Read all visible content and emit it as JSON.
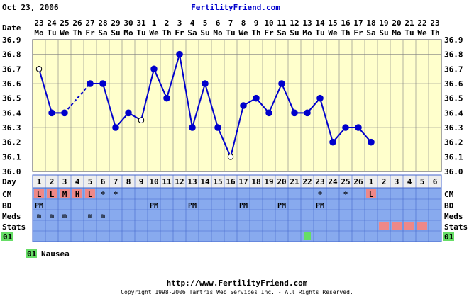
{
  "header": {
    "date": "Oct 23, 2006",
    "site": "FertilityFriend.com"
  },
  "rows": {
    "date_label": "Date",
    "day_label": "Day",
    "cm_label": "CM",
    "bd_label": "BD",
    "meds_label": "Meds",
    "stats_label": "Stats",
    "symptom_code": "01"
  },
  "legend": {
    "code": "01",
    "label": "Nausea"
  },
  "footer": {
    "url": "http://www.FertilityFriend.com",
    "copyright": "Copyright 1998-2006 Tamtris Web Services Inc. - All Rights Reserved."
  },
  "colors": {
    "plot_bg": "#ffffcc",
    "grid": "#808080",
    "line": "#0000cc",
    "point": "#0000cc",
    "row_bg": "#88aaee",
    "row_border": "#4466cc",
    "day_row_bg": "#eeeeee",
    "cm_mark": "#ee8888",
    "stats_mark": "#ee8888",
    "symptom_mark": "#66dd66",
    "site_link": "#0000cc"
  },
  "chart_data": {
    "type": "line",
    "ylim": [
      36.0,
      36.9
    ],
    "yticks": [
      "36.0",
      "36.1",
      "36.2",
      "36.3",
      "36.4",
      "36.5",
      "36.6",
      "36.7",
      "36.8",
      "36.9"
    ],
    "grid": true,
    "dates": [
      "23",
      "24",
      "25",
      "26",
      "27",
      "28",
      "29",
      "30",
      "31",
      "1",
      "2",
      "3",
      "4",
      "5",
      "6",
      "7",
      "8",
      "9",
      "10",
      "11",
      "12",
      "13",
      "14",
      "15",
      "16",
      "17",
      "18",
      "19",
      "20",
      "21",
      "22",
      "23"
    ],
    "weekdays": [
      "Mo",
      "Tu",
      "We",
      "Th",
      "Fr",
      "Sa",
      "Su",
      "Mo",
      "Tu",
      "We",
      "Th",
      "Fr",
      "Sa",
      "Su",
      "Mo",
      "Tu",
      "We",
      "Th",
      "Fr",
      "Sa",
      "Su",
      "Mo",
      "Tu",
      "We",
      "Th",
      "Fr",
      "Sa",
      "Su",
      "Mo",
      "Tu",
      "We",
      "Th"
    ],
    "cycle_days": [
      "1",
      "2",
      "3",
      "4",
      "5",
      "6",
      "7",
      "8",
      "9",
      "10",
      "11",
      "12",
      "13",
      "14",
      "15",
      "16",
      "17",
      "18",
      "19",
      "20",
      "21",
      "22",
      "23",
      "24",
      "25",
      "26",
      "1",
      "2",
      "3",
      "4",
      "5",
      "6"
    ],
    "temperatures": [
      36.7,
      36.4,
      36.4,
      null,
      36.6,
      36.6,
      36.3,
      36.4,
      36.35,
      36.7,
      36.5,
      36.8,
      36.3,
      36.6,
      36.3,
      36.1,
      36.45,
      36.5,
      36.4,
      36.6,
      36.4,
      36.4,
      36.5,
      36.2,
      36.3,
      36.3,
      36.2,
      null,
      null,
      null,
      null,
      null
    ],
    "open_points": [
      0,
      8,
      15
    ],
    "dashed_segments": [
      [
        2,
        4
      ]
    ],
    "cm": [
      "L",
      "L",
      "M",
      "H",
      "L",
      "*",
      "*",
      "",
      "",
      "",
      "",
      "",
      "",
      "",
      "",
      "",
      "",
      "",
      "",
      "",
      "",
      "",
      "*",
      "",
      "*",
      "",
      "L",
      "",
      "",
      "",
      "",
      ""
    ],
    "bd": [
      "PM",
      "",
      "",
      "",
      "",
      "",
      "",
      "",
      "",
      "PM",
      "",
      "",
      "PM",
      "",
      "",
      "",
      "PM",
      "",
      "",
      "PM",
      "",
      "",
      "PM",
      "",
      "",
      "",
      "",
      "",
      "",
      "",
      "",
      ""
    ],
    "meds": [
      "m",
      "m",
      "m",
      "",
      "m",
      "m",
      "",
      "",
      "",
      "",
      "",
      "",
      "",
      "",
      "",
      "",
      "",
      "",
      "",
      "",
      "",
      "",
      "",
      "",
      "",
      "",
      "",
      "",
      "",
      "",
      "",
      ""
    ],
    "stats_marked": [
      27,
      28,
      29,
      30
    ],
    "symptom_01_marked": [
      21
    ]
  }
}
